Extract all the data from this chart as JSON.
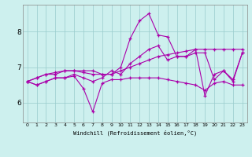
{
  "xlabel": "Windchill (Refroidissement éolien,°C)",
  "background_color": "#cdf0ee",
  "line_color": "#aa00aa",
  "xlim": [
    -0.5,
    23.5
  ],
  "ylim": [
    5.45,
    8.75
  ],
  "yticks": [
    6,
    7,
    8
  ],
  "xticks": [
    0,
    1,
    2,
    3,
    4,
    5,
    6,
    7,
    8,
    9,
    10,
    11,
    12,
    13,
    14,
    15,
    16,
    17,
    18,
    19,
    20,
    21,
    22,
    23
  ],
  "series": [
    [
      6.6,
      6.5,
      6.6,
      6.7,
      6.7,
      6.8,
      6.7,
      6.6,
      6.7,
      6.9,
      6.8,
      7.1,
      7.3,
      7.5,
      7.6,
      7.2,
      7.3,
      7.3,
      7.5,
      6.2,
      6.8,
      6.9,
      6.6,
      7.4
    ],
    [
      6.6,
      6.7,
      6.8,
      6.8,
      6.9,
      6.9,
      6.9,
      6.9,
      6.8,
      6.8,
      7.0,
      7.8,
      8.3,
      8.5,
      7.9,
      7.85,
      7.3,
      7.3,
      7.4,
      7.4,
      6.65,
      6.9,
      6.65,
      7.4
    ],
    [
      6.6,
      6.5,
      6.6,
      6.7,
      6.7,
      6.75,
      6.4,
      5.75,
      6.55,
      6.65,
      6.65,
      6.7,
      6.7,
      6.7,
      6.7,
      6.65,
      6.6,
      6.55,
      6.5,
      6.35,
      6.55,
      6.6,
      6.5,
      6.5
    ],
    [
      6.6,
      6.7,
      6.8,
      6.85,
      6.9,
      6.9,
      6.85,
      6.8,
      6.8,
      6.8,
      6.9,
      7.0,
      7.1,
      7.2,
      7.3,
      7.35,
      7.4,
      7.45,
      7.5,
      7.5,
      7.5,
      7.5,
      7.5,
      7.5
    ]
  ]
}
